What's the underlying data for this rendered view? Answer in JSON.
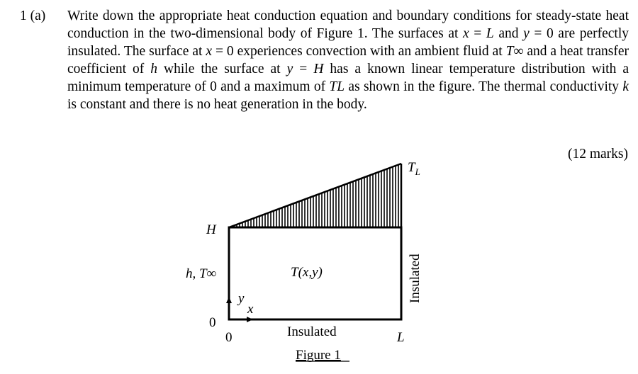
{
  "question": {
    "number": "1 (a)",
    "text_segments": [
      "Write down the appropriate heat conduction equation and boundary conditions for steady-state heat conduction in the two-dimensional body of Figure 1. The surfaces at ",
      "x",
      " = ",
      "L",
      " and ",
      "y",
      " = 0 are perfectly insulated. The surface at ",
      "x",
      " = 0 experiences convection with an ambient fluid at ",
      "T∞",
      " and a heat transfer coefficient of ",
      "h",
      " while the surface at ",
      "y",
      " = ",
      "H",
      " has a known linear temperature distribution with a minimum temperature of 0 and a maximum of ",
      "TL",
      " as shown in the figure. The thermal conductivity ",
      "k",
      " is constant and there is no heat generation in the body."
    ],
    "marks": "(12 marks)"
  },
  "figure": {
    "caption": "Figure 1",
    "label_top_right": "TL",
    "label_top_left": "H",
    "label_left_side": "h, T∞",
    "label_center": "T(x,y)",
    "label_right_side": "Insulated",
    "label_bottom": "Insulated",
    "label_origin_y": "0",
    "label_origin_x": "0",
    "label_x_end": "L",
    "axis_y": "y",
    "axis_x": "x"
  }
}
